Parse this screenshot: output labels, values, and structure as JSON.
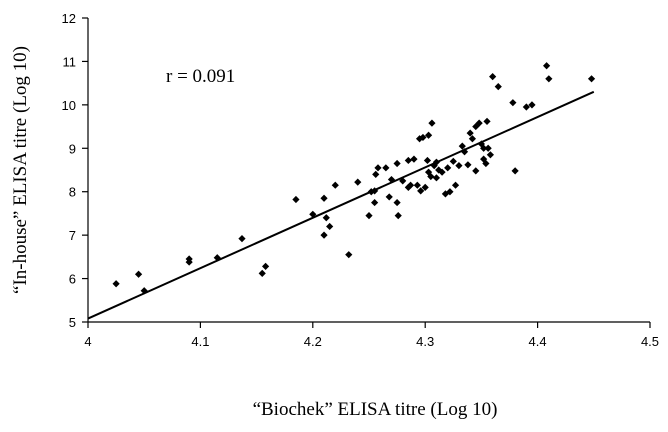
{
  "chart_data": {
    "type": "scatter",
    "xlabel": "“Biochek” ELISA titre (Log 10)",
    "ylabel": "“In-house” ELISA titre (Log 10)",
    "xlim": [
      4,
      4.5
    ],
    "ylim": [
      5,
      12
    ],
    "xticks": [
      "4",
      "4.1",
      "4.2",
      "4.3",
      "4.4",
      "4.5"
    ],
    "yticks": [
      "5",
      "6",
      "7",
      "8",
      "9",
      "10",
      "11",
      "12"
    ],
    "annotation": "r = 0.091",
    "grid": false,
    "legend": "none",
    "marker_color": "#000000",
    "trendline": {
      "x": [
        4,
        4.45
      ],
      "y": [
        5.08,
        10.3
      ]
    },
    "points": [
      [
        4.025,
        5.88
      ],
      [
        4.045,
        6.1
      ],
      [
        4.05,
        5.72
      ],
      [
        4.09,
        6.45
      ],
      [
        4.09,
        6.38
      ],
      [
        4.115,
        6.48
      ],
      [
        4.137,
        6.92
      ],
      [
        4.155,
        6.12
      ],
      [
        4.158,
        6.28
      ],
      [
        4.185,
        7.82
      ],
      [
        4.2,
        7.48
      ],
      [
        4.21,
        7.85
      ],
      [
        4.21,
        7.0
      ],
      [
        4.212,
        7.4
      ],
      [
        4.215,
        7.2
      ],
      [
        4.22,
        8.15
      ],
      [
        4.232,
        6.55
      ],
      [
        4.24,
        8.22
      ],
      [
        4.25,
        7.45
      ],
      [
        4.252,
        8.0
      ],
      [
        4.255,
        8.02
      ],
      [
        4.255,
        7.75
      ],
      [
        4.256,
        8.4
      ],
      [
        4.258,
        8.55
      ],
      [
        4.265,
        8.55
      ],
      [
        4.268,
        7.88
      ],
      [
        4.27,
        8.28
      ],
      [
        4.275,
        8.65
      ],
      [
        4.275,
        7.75
      ],
      [
        4.276,
        7.45
      ],
      [
        4.28,
        8.25
      ],
      [
        4.285,
        8.72
      ],
      [
        4.285,
        8.1
      ],
      [
        4.287,
        8.15
      ],
      [
        4.29,
        8.75
      ],
      [
        4.293,
        8.15
      ],
      [
        4.295,
        9.22
      ],
      [
        4.296,
        8.02
      ],
      [
        4.298,
        9.25
      ],
      [
        4.3,
        8.1
      ],
      [
        4.302,
        8.72
      ],
      [
        4.303,
        9.3
      ],
      [
        4.303,
        8.45
      ],
      [
        4.305,
        8.35
      ],
      [
        4.306,
        9.58
      ],
      [
        4.308,
        8.6
      ],
      [
        4.31,
        8.68
      ],
      [
        4.31,
        8.32
      ],
      [
        4.312,
        8.5
      ],
      [
        4.315,
        8.45
      ],
      [
        4.318,
        7.95
      ],
      [
        4.32,
        8.55
      ],
      [
        4.322,
        8.0
      ],
      [
        4.325,
        8.7
      ],
      [
        4.327,
        8.15
      ],
      [
        4.33,
        8.6
      ],
      [
        4.333,
        9.05
      ],
      [
        4.335,
        8.92
      ],
      [
        4.338,
        8.62
      ],
      [
        4.34,
        9.35
      ],
      [
        4.342,
        9.22
      ],
      [
        4.345,
        9.5
      ],
      [
        4.345,
        8.48
      ],
      [
        4.348,
        9.58
      ],
      [
        4.35,
        9.1
      ],
      [
        4.352,
        9.0
      ],
      [
        4.352,
        8.75
      ],
      [
        4.354,
        8.65
      ],
      [
        4.355,
        9.62
      ],
      [
        4.356,
        9.0
      ],
      [
        4.358,
        8.85
      ],
      [
        4.36,
        10.65
      ],
      [
        4.365,
        10.42
      ],
      [
        4.378,
        10.05
      ],
      [
        4.38,
        8.48
      ],
      [
        4.39,
        9.95
      ],
      [
        4.395,
        10.0
      ],
      [
        4.408,
        10.9
      ],
      [
        4.41,
        10.6
      ],
      [
        4.448,
        10.6
      ]
    ]
  }
}
